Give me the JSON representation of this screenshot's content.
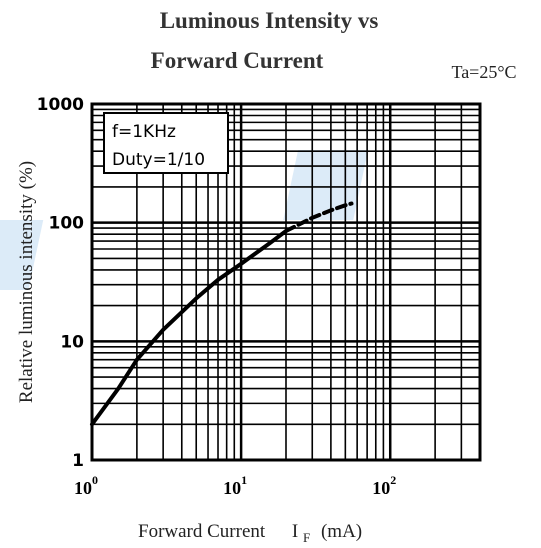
{
  "chart_data": {
    "type": "line",
    "title_line1": "Luminous Intensity vs",
    "title_line2": "Forward Current",
    "condition": "Ta=25°C",
    "xlabel": "Forward Current",
    "xlabel_symbol": "I",
    "xlabel_subscript": "F",
    "xlabel_unit": "(mA)",
    "ylabel": "Relative luminous intensity  (%)",
    "legend_line1": "f=1KHz",
    "legend_line2": "Duty=1/10",
    "legend_placement": "top-left",
    "x_scale": "log",
    "y_scale": "log",
    "xlim": [
      1,
      400
    ],
    "ylim": [
      1,
      1000
    ],
    "x_ticks": [
      {
        "base": "10",
        "exp": "0"
      },
      {
        "base": "10",
        "exp": "1"
      },
      {
        "base": "10",
        "exp": "2"
      }
    ],
    "y_ticks": [
      "1",
      "10",
      "100",
      "1000"
    ],
    "grid": true,
    "series": [
      {
        "color": "#000000",
        "x": [
          1,
          1.5,
          2,
          3,
          5,
          7,
          10,
          15,
          20
        ],
        "y": [
          2,
          4,
          7,
          12.5,
          23,
          33,
          45,
          65,
          85
        ],
        "style": "solid"
      },
      {
        "color": "#000000",
        "x": [
          20,
          30,
          40,
          50,
          55
        ],
        "y": [
          85,
          110,
          127,
          140,
          145
        ],
        "style": "dashed"
      }
    ]
  }
}
